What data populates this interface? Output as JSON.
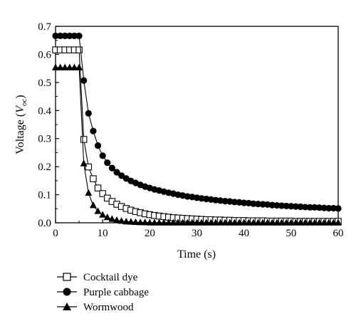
{
  "chart_data": {
    "type": "line",
    "xlabel": "Time (s)",
    "ylabel_prefix": "Voltage (",
    "ylabel_var": "V",
    "ylabel_sub": "oc",
    "ylabel_suffix": ")",
    "xlim": [
      0,
      60
    ],
    "ylim": [
      0,
      0.7
    ],
    "xticks": [
      0,
      10,
      20,
      30,
      40,
      50,
      60
    ],
    "yticks": [
      0.0,
      0.1,
      0.2,
      0.3,
      0.4,
      0.5,
      0.6,
      0.7
    ],
    "grid": false,
    "legend_position": "bottom-left",
    "series": [
      {
        "name": "Cocktail dye",
        "marker": "open-square",
        "x": [
          0,
          1,
          2,
          3,
          4,
          5,
          6,
          7,
          8,
          9,
          10,
          11,
          12,
          13,
          14,
          15,
          16,
          17,
          18,
          19,
          20,
          21,
          22,
          23,
          24,
          25,
          26,
          27,
          28,
          29,
          30,
          31,
          32,
          33,
          34,
          35,
          36,
          37,
          38,
          39,
          40,
          41,
          42,
          43,
          44,
          45,
          46,
          47,
          48,
          49,
          50,
          51,
          52,
          53,
          54,
          55,
          56,
          57,
          58,
          59,
          60
        ],
        "values": [
          0.616,
          0.616,
          0.616,
          0.616,
          0.616,
          0.616,
          0.297,
          0.199,
          0.157,
          0.124,
          0.104,
          0.088,
          0.076,
          0.066,
          0.058,
          0.051,
          0.045,
          0.04,
          0.036,
          0.032,
          0.029,
          0.026,
          0.024,
          0.022,
          0.02,
          0.018,
          0.017,
          0.016,
          0.015,
          0.014,
          0.013,
          0.012,
          0.011,
          0.011,
          0.01,
          0.01,
          0.009,
          0.009,
          0.008,
          0.008,
          0.008,
          0.007,
          0.007,
          0.007,
          0.007,
          0.006,
          0.006,
          0.006,
          0.006,
          0.006,
          0.006,
          0.005,
          0.005,
          0.005,
          0.005,
          0.005,
          0.005,
          0.005,
          0.005,
          0.005,
          0.005
        ]
      },
      {
        "name": "Purple cabbage",
        "marker": "filled-circle",
        "x": [
          0,
          1,
          2,
          3,
          4,
          5,
          6,
          7,
          8,
          9,
          10,
          11,
          12,
          13,
          14,
          15,
          16,
          17,
          18,
          19,
          20,
          21,
          22,
          23,
          24,
          25,
          26,
          27,
          28,
          29,
          30,
          31,
          32,
          33,
          34,
          35,
          36,
          37,
          38,
          39,
          40,
          41,
          42,
          43,
          44,
          45,
          46,
          47,
          48,
          49,
          50,
          51,
          52,
          53,
          54,
          55,
          56,
          57,
          58,
          59,
          60
        ],
        "values": [
          0.666,
          0.666,
          0.666,
          0.666,
          0.666,
          0.666,
          0.507,
          0.39,
          0.327,
          0.275,
          0.239,
          0.214,
          0.195,
          0.18,
          0.168,
          0.158,
          0.149,
          0.142,
          0.135,
          0.129,
          0.124,
          0.119,
          0.115,
          0.111,
          0.107,
          0.104,
          0.1,
          0.097,
          0.094,
          0.092,
          0.089,
          0.087,
          0.085,
          0.083,
          0.081,
          0.079,
          0.077,
          0.076,
          0.074,
          0.073,
          0.071,
          0.07,
          0.068,
          0.067,
          0.066,
          0.065,
          0.063,
          0.062,
          0.061,
          0.06,
          0.059,
          0.058,
          0.057,
          0.056,
          0.055,
          0.055,
          0.054,
          0.053,
          0.052,
          0.052,
          0.051
        ]
      },
      {
        "name": "Wormwood",
        "marker": "filled-triangle",
        "x": [
          0,
          1,
          2,
          3,
          4,
          5,
          6,
          7,
          8,
          9,
          10,
          11,
          12,
          13,
          14,
          15,
          16,
          17,
          18,
          19,
          20,
          21,
          22,
          23,
          24,
          25,
          26,
          27,
          28,
          29,
          30,
          31,
          32,
          33,
          34,
          35,
          36,
          37,
          38,
          39,
          40,
          41,
          42,
          43,
          44,
          45,
          46,
          47,
          48,
          49,
          50,
          51,
          52,
          53,
          54,
          55,
          56,
          57,
          58,
          59,
          60
        ],
        "values": [
          0.553,
          0.553,
          0.553,
          0.553,
          0.553,
          0.553,
          0.211,
          0.106,
          0.062,
          0.041,
          0.028,
          0.019,
          0.013,
          0.009,
          0.006,
          0.004,
          0.003,
          0.002,
          0.001,
          0.001,
          0.0,
          0.0,
          0.0,
          0.0,
          0.0,
          0.0,
          0.0,
          0.0,
          0.0,
          0.0,
          0.0,
          0.0,
          0.0,
          0.0,
          0.0,
          0.0,
          0.0,
          0.0,
          0.0,
          0.0,
          0.0,
          0.0,
          0.0,
          0.0,
          0.0,
          0.0,
          0.0,
          0.0,
          0.0,
          0.0,
          0.0,
          0.0,
          0.0,
          0.0,
          0.0,
          0.0,
          0.0,
          0.0,
          0.0,
          0.0,
          0.0
        ]
      }
    ]
  }
}
